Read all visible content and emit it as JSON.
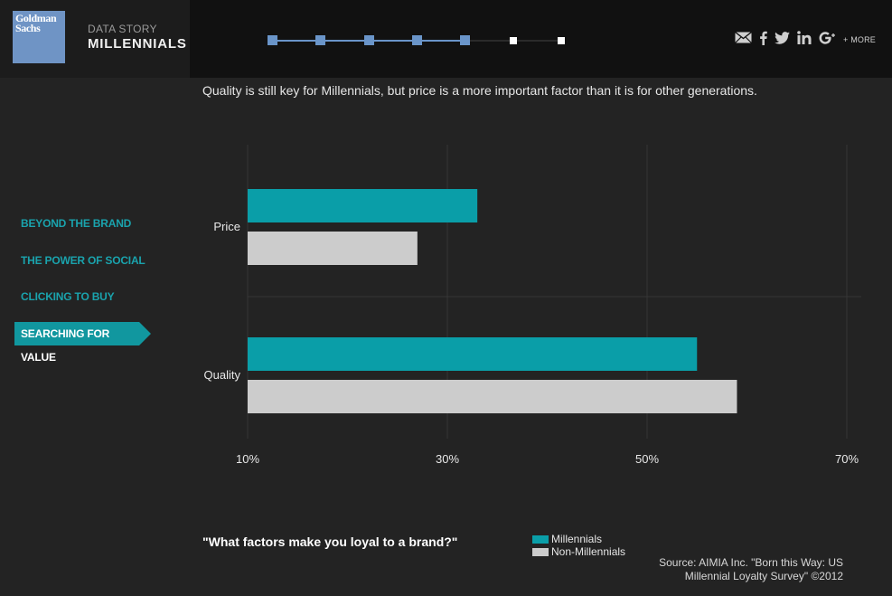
{
  "header": {
    "logo_line1": "Goldman",
    "logo_line2": "Sachs",
    "kicker": "DATA STORY",
    "title": "MILLENNIALS",
    "progress_total": 7,
    "progress_completed": 5,
    "more_label": "+ MORE",
    "share_icons": [
      "email-icon",
      "facebook-icon",
      "twitter-icon",
      "linkedin-icon",
      "googleplus-icon"
    ]
  },
  "subtitle": "Quality is still key for Millennials, but price is a more important factor than it is for other generations.",
  "nav": {
    "items": [
      {
        "label": "BEYOND THE BRAND",
        "active": false
      },
      {
        "label": "THE POWER OF SOCIAL",
        "active": false
      },
      {
        "label": "CLICKING TO BUY",
        "active": false
      },
      {
        "label": "SEARCHING FOR VALUE",
        "active": true
      }
    ]
  },
  "colors": {
    "accent": "#11979f",
    "millennials": "#0a9ea8",
    "non_millennials": "#cccccc",
    "progress_done": "#6a95c9"
  },
  "chart_data": {
    "type": "bar",
    "orientation": "horizontal",
    "categories": [
      "Price",
      "Quality"
    ],
    "series": [
      {
        "name": "Millennials",
        "values": [
          33,
          55
        ]
      },
      {
        "name": "Non-Millennials",
        "values": [
          27,
          59
        ]
      }
    ],
    "xlim": [
      10,
      70
    ],
    "xticks": [
      "10%",
      "30%",
      "50%",
      "70%"
    ],
    "xtick_values": [
      10,
      30,
      50,
      70
    ],
    "grid": true,
    "legend_position": "bottom"
  },
  "question": "\"What factors make you loyal to a brand?\"",
  "legend": {
    "millennials": "Millennials",
    "non_millennials": "Non-Millennials"
  },
  "source": {
    "line1": "Source: AIMIA Inc. \"Born this Way: US",
    "line2": "Millennial Loyalty Survey\" ©2012"
  }
}
